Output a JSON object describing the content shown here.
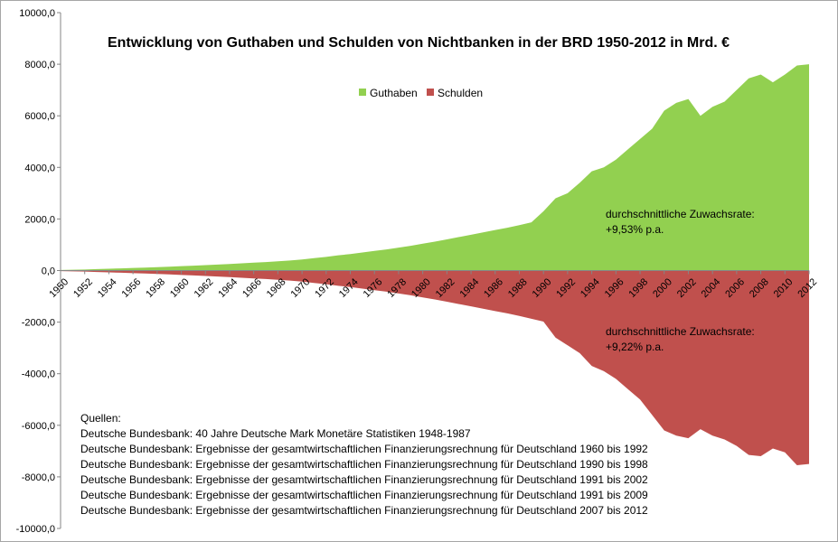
{
  "chart_data": {
    "type": "area",
    "title": "Entwicklung von Guthaben und Schulden von Nichtbanken in der BRD 1950-2012 in Mrd. €",
    "x": [
      1950,
      1951,
      1952,
      1953,
      1954,
      1955,
      1956,
      1957,
      1958,
      1959,
      1960,
      1961,
      1962,
      1963,
      1964,
      1965,
      1966,
      1967,
      1968,
      1969,
      1970,
      1971,
      1972,
      1973,
      1974,
      1975,
      1976,
      1977,
      1978,
      1979,
      1980,
      1981,
      1982,
      1983,
      1984,
      1985,
      1986,
      1987,
      1988,
      1989,
      1990,
      1991,
      1992,
      1993,
      1994,
      1995,
      1996,
      1997,
      1998,
      1999,
      2000,
      2001,
      2002,
      2003,
      2004,
      2005,
      2006,
      2007,
      2008,
      2009,
      2010,
      2011,
      2012
    ],
    "x_tick_labels": [
      "1950",
      "1952",
      "1954",
      "1956",
      "1958",
      "1960",
      "1962",
      "1964",
      "1966",
      "1968",
      "1970",
      "1972",
      "1974",
      "1976",
      "1978",
      "1980",
      "1982",
      "1984",
      "1986",
      "1988",
      "1990",
      "1992",
      "1994",
      "1996",
      "1998",
      "2000",
      "2002",
      "2004",
      "2006",
      "2008",
      "2010",
      "2012"
    ],
    "y_tick_labels": [
      "10000,0",
      "8000,0",
      "6000,0",
      "4000,0",
      "2000,0",
      "0,0",
      "-2000,0",
      "-4000,0",
      "-6000,0",
      "-8000,0",
      "-10000,0"
    ],
    "ylim": [
      -10000,
      10000
    ],
    "series": [
      {
        "name": "Guthaben",
        "color": "#92d050",
        "values": [
          20,
          30,
          40,
          55,
          70,
          85,
          100,
          115,
          130,
          150,
          170,
          190,
          210,
          230,
          255,
          280,
          305,
          330,
          360,
          390,
          430,
          480,
          530,
          590,
          640,
          700,
          760,
          820,
          890,
          960,
          1040,
          1120,
          1210,
          1300,
          1390,
          1480,
          1570,
          1660,
          1760,
          1870,
          2300,
          2800,
          3000,
          3400,
          3850,
          4000,
          4300,
          4700,
          5100,
          5500,
          6200,
          6500,
          6650,
          6000,
          6350,
          6550,
          7000,
          7450,
          7600,
          7300,
          7600,
          7950,
          8000
        ]
      },
      {
        "name": "Schulden",
        "color": "#c0504d",
        "values": [
          -20,
          -30,
          -40,
          -55,
          -70,
          -85,
          -100,
          -115,
          -130,
          -150,
          -170,
          -190,
          -210,
          -230,
          -255,
          -280,
          -305,
          -330,
          -360,
          -390,
          -430,
          -480,
          -530,
          -590,
          -640,
          -700,
          -760,
          -820,
          -890,
          -960,
          -1040,
          -1120,
          -1210,
          -1300,
          -1390,
          -1480,
          -1570,
          -1660,
          -1760,
          -1870,
          -1980,
          -2600,
          -2900,
          -3200,
          -3700,
          -3900,
          -4200,
          -4600,
          -5000,
          -5600,
          -6200,
          -6400,
          -6500,
          -6150,
          -6400,
          -6550,
          -6800,
          -7150,
          -7200,
          -6900,
          -7050,
          -7550,
          -7500
        ]
      }
    ],
    "annotations": {
      "guthaben_line1": "durchschnittliche Zuwachsrate:",
      "guthaben_line2": "+9,53% p.a.",
      "schulden_line1": "durchschnittliche Zuwachsrate:",
      "schulden_line2": "+9,22% p.a."
    },
    "legend_position": "top-center",
    "grid": false
  },
  "sources": {
    "heading": "Quellen:",
    "lines": [
      "Deutsche Bundesbank: 40 Jahre Deutsche Mark Monetäre Statistiken 1948-1987",
      "Deutsche Bundesbank: Ergebnisse der gesamtwirtschaftlichen Finanzierungsrechnung für Deutschland 1960 bis 1992",
      "Deutsche Bundesbank: Ergebnisse der gesamtwirtschaftlichen Finanzierungsrechnung für Deutschland 1990 bis 1998",
      "Deutsche Bundesbank: Ergebnisse der gesamtwirtschaftlichen Finanzierungsrechnung für Deutschland 1991 bis 2002",
      "Deutsche Bundesbank: Ergebnisse der gesamtwirtschaftlichen Finanzierungsrechnung für Deutschland 1991 bis 2009",
      "Deutsche Bundesbank: Ergebnisse der gesamtwirtschaftlichen Finanzierungsrechnung für Deutschland 2007 bis 2012"
    ]
  }
}
